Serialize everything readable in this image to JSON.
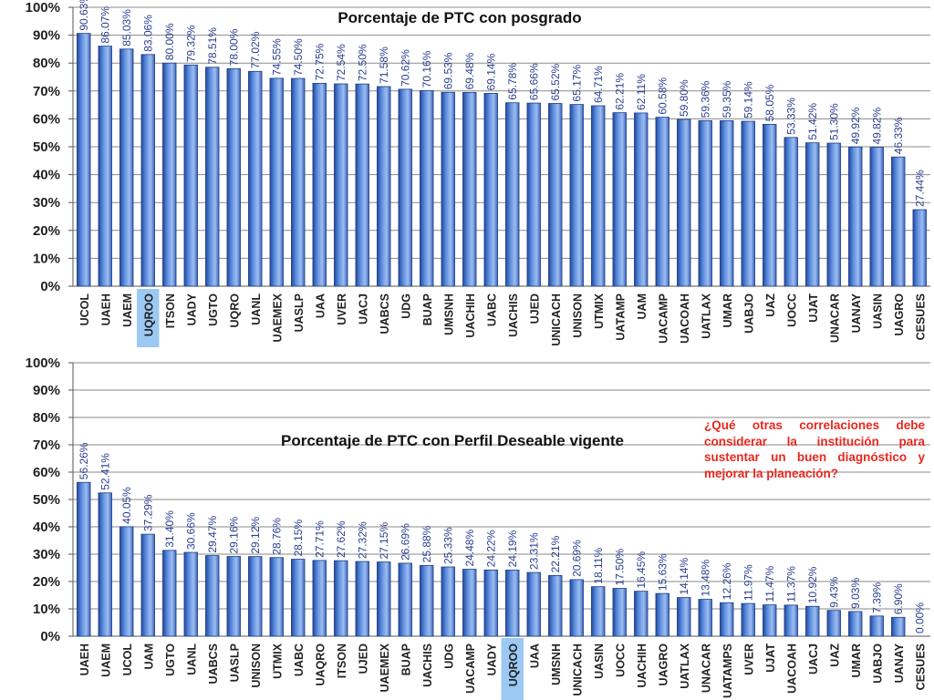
{
  "charts": [
    {
      "type": "bar",
      "title": "Porcentaje de PTC con posgrado",
      "ylim": [
        0,
        100
      ],
      "yticks": [
        "0%",
        "10%",
        "20%",
        "30%",
        "40%",
        "50%",
        "60%",
        "70%",
        "80%",
        "90%",
        "100%"
      ],
      "highlight": "UQROO",
      "categories": [
        "UCOL",
        "UAEH",
        "UAEM",
        "UQROO",
        "ITSON",
        "UADY",
        "UGTO",
        "UQRO",
        "UANL",
        "UAEMEX",
        "UASLP",
        "UAA",
        "UVER",
        "UACJ",
        "UABCS",
        "UDG",
        "BUAP",
        "UMSNH",
        "UACHIH",
        "UABC",
        "UACHIS",
        "UJED",
        "UNICACH",
        "UNISON",
        "UTMIX",
        "UATAMP",
        "UAM",
        "UACAMP",
        "UACOAH",
        "UATLAX",
        "UMAR",
        "UABJO",
        "UAZ",
        "UOCC",
        "UJAT",
        "UNACAR",
        "UANAY",
        "UASIN",
        "UAGRO",
        "CESUES"
      ],
      "labels": [
        "90.63%",
        "86.07%",
        "85.03%",
        "83.06%",
        "80.00%",
        "79.32%",
        "78.51%",
        "78.00%",
        "77.02%",
        "74.55%",
        "74.50%",
        "72.75%",
        "72.54%",
        "72.50%",
        "71.58%",
        "70.62%",
        "70.16%",
        "69.53%",
        "69.48%",
        "69.14%",
        "65.78%",
        "65.66%",
        "65.52%",
        "65.17%",
        "64.71%",
        "62.21%",
        "62.11%",
        "60.58%",
        "59.80%",
        "59.36%",
        "59.35%",
        "59.14%",
        "58.05%",
        "53.33%",
        "51.42%",
        "51.30%",
        "49.92%",
        "49.82%",
        "46.33%",
        "27.44%"
      ],
      "values": [
        90.63,
        86.07,
        85.03,
        83.06,
        80.0,
        79.32,
        78.51,
        78.0,
        77.02,
        74.55,
        74.5,
        72.75,
        72.54,
        72.5,
        71.58,
        70.62,
        70.16,
        69.53,
        69.48,
        69.14,
        65.78,
        65.66,
        65.52,
        65.17,
        64.71,
        62.21,
        62.11,
        60.58,
        59.8,
        59.36,
        59.35,
        59.14,
        58.05,
        53.33,
        51.42,
        51.3,
        49.92,
        49.82,
        46.33,
        27.44
      ]
    },
    {
      "type": "bar",
      "title": "Porcentaje de PTC con Perfil Deseable vigente",
      "ylim": [
        0,
        100
      ],
      "yticks": [
        "0%",
        "10%",
        "20%",
        "30%",
        "40%",
        "50%",
        "60%",
        "70%",
        "80%",
        "90%",
        "100%"
      ],
      "highlight": "UQROO",
      "categories": [
        "UAEH",
        "UAEM",
        "UCOL",
        "UAM",
        "UGTO",
        "UANL",
        "UABCS",
        "UASLP",
        "UNISON",
        "UTMIX",
        "UABC",
        "UAQRO",
        "ITSON",
        "UJED",
        "UAEMEX",
        "BUAP",
        "UACHIS",
        "UDG",
        "UACAMP",
        "UADY",
        "UQROO",
        "UAA",
        "UMSNH",
        "UNICACH",
        "UASIN",
        "UOCC",
        "UACHIH",
        "UAGRO",
        "UATLAX",
        "UNACAR",
        "UATAMPS",
        "UVER",
        "UJAT",
        "UACOAH",
        "UACJ",
        "UAZ",
        "UMAR",
        "UABJO",
        "UANAY",
        "CESUES"
      ],
      "labels": [
        "56.26%",
        "52.41%",
        "40.05%",
        "37.29%",
        "31.40%",
        "30.66%",
        "29.47%",
        "29.16%",
        "29.12%",
        "28.76%",
        "28.15%",
        "27.71%",
        "27.62%",
        "27.32%",
        "27.15%",
        "26.69%",
        "25.88%",
        "25.33%",
        "24.48%",
        "24.22%",
        "24.19%",
        "23.31%",
        "22.21%",
        "20.69%",
        "18.11%",
        "17.50%",
        "16.45%",
        "15.63%",
        "14.14%",
        "13.48%",
        "12.26%",
        "11.97%",
        "11.47%",
        "11.37%",
        "10.92%",
        "9.43%",
        "9.03%",
        "7.39%",
        "6.90%",
        "0.00%"
      ],
      "values": [
        56.26,
        52.41,
        40.05,
        37.29,
        31.4,
        30.66,
        29.47,
        29.16,
        29.12,
        28.76,
        28.15,
        27.71,
        27.62,
        27.32,
        27.15,
        26.69,
        25.88,
        25.33,
        24.48,
        24.22,
        24.19,
        23.31,
        22.21,
        20.69,
        18.11,
        17.5,
        16.45,
        15.63,
        14.14,
        13.48,
        12.26,
        11.97,
        11.47,
        11.37,
        10.92,
        9.43,
        9.03,
        7.39,
        6.9,
        0.0
      ]
    }
  ],
  "note": "¿Qué otras correlaciones debe considerar la institución para sustentar un buen diagnóstico y mejorar la planeación?",
  "colors": {
    "bar": "#3f6fcc",
    "bar_light": "#a9c4f0",
    "highlight": "#9cc9f4",
    "grid": "#8a8a8a",
    "note": "#e8281e"
  }
}
